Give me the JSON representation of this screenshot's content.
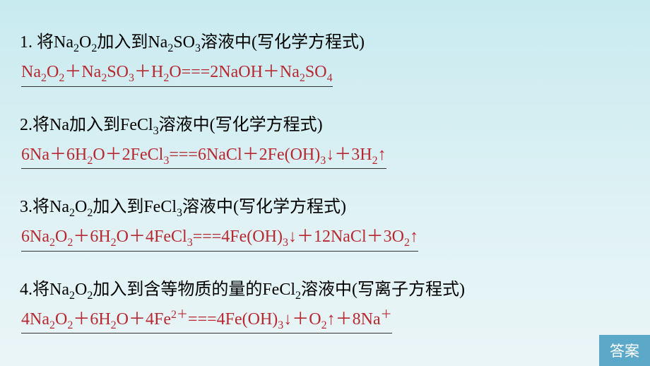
{
  "question_color": "#000000",
  "answer_color": "#b72831",
  "background_gradient": [
    "#c8ebf0",
    "#eaf5f7"
  ],
  "button_bg": "#5ba8c9",
  "button_color": "#ffffff",
  "font_size": 24,
  "sub_font_size": 16,
  "items": [
    {
      "q": "1. 将Na<sub>2</sub>O<sub>2</sub>加入到Na<sub>2</sub>SO<sub>3</sub>溶液中(写化学方程式)",
      "a": "Na<sub>2</sub>O<sub>2</sub>＋Na<sub>2</sub>SO<sub>3</sub>＋H<sub>2</sub>O===2NaOH＋Na<sub>2</sub>SO<sub>4</sub>"
    },
    {
      "q": "2.将Na加入到FeCl<sub>3</sub>溶液中(写化学方程式)",
      "a": "6Na＋6H<sub>2</sub>O＋2FeCl<sub>3</sub>===6NaCl＋2Fe(OH)<sub>3</sub>↓＋3H<sub>2</sub>↑"
    },
    {
      "q": "3.将Na<sub>2</sub>O<sub>2</sub>加入到FeCl<sub>3</sub>溶液中(写化学方程式)",
      "a": "6Na<sub>2</sub>O<sub>2</sub>＋6H<sub>2</sub>O＋4FeCl<sub>3</sub>===4Fe(OH)<sub>3</sub>↓＋12NaCl＋3O<sub>2</sub>↑"
    },
    {
      "q": "4.将Na<sub>2</sub>O<sub>2</sub>加入到含等物质的量的FeCl<sub>2</sub>溶液中(写离子方程式)",
      "a": "4Na<sub>2</sub>O<sub>2</sub>＋6H<sub>2</sub>O＋4Fe<sup>2＋</sup>===4Fe(OH)<sub>3</sub>↓＋O<sub>2</sub>↑＋8Na<sup>＋</sup>"
    }
  ],
  "button_label": "答案"
}
